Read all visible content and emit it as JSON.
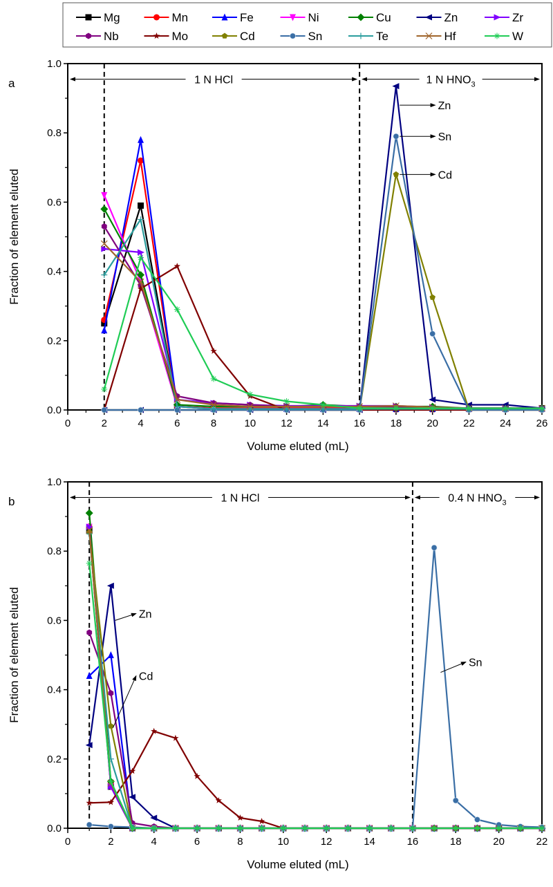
{
  "legend": {
    "entries": [
      {
        "name": "Mg",
        "color": "#000000",
        "marker": "square"
      },
      {
        "name": "Mn",
        "color": "#ff0000",
        "marker": "circle"
      },
      {
        "name": "Fe",
        "color": "#0000ff",
        "marker": "triangle-up"
      },
      {
        "name": "Ni",
        "color": "#ff00ff",
        "marker": "triangle-down"
      },
      {
        "name": "Cu",
        "color": "#008000",
        "marker": "diamond"
      },
      {
        "name": "Zn",
        "color": "#000080",
        "marker": "triangle-left"
      },
      {
        "name": "Zr",
        "color": "#8000ff",
        "marker": "triangle-right"
      },
      {
        "name": "Nb",
        "color": "#800080",
        "marker": "hexagon"
      },
      {
        "name": "Mo",
        "color": "#800000",
        "marker": "star"
      },
      {
        "name": "Cd",
        "color": "#808000",
        "marker": "pentagon"
      },
      {
        "name": "Sn",
        "color": "#3a6ea5",
        "marker": "sphere"
      },
      {
        "name": "Te",
        "color": "#2a9d9d",
        "marker": "plus"
      },
      {
        "name": "Hf",
        "color": "#a0642a",
        "marker": "cross"
      },
      {
        "name": "W",
        "color": "#1fcc55",
        "marker": "asterisk"
      }
    ]
  },
  "chart_data": [
    {
      "type": "line",
      "panel": "a",
      "xlabel": "Volume eluted (mL)",
      "ylabel": "Fraction of element eluted",
      "xlim": [
        0,
        26
      ],
      "ylim": [
        0,
        1.0
      ],
      "xticks": [
        0,
        2,
        4,
        6,
        8,
        10,
        12,
        14,
        16,
        18,
        20,
        22,
        24,
        26
      ],
      "yticks": [
        0.0,
        0.2,
        0.4,
        0.6,
        0.8,
        1.0
      ],
      "ytick_labels": [
        "0.0",
        "0.2",
        "0.4",
        "0.6",
        "0.8",
        "1.0"
      ],
      "dividers": [
        2,
        16
      ],
      "regions": [
        {
          "label": "1 N HCl",
          "sub": "",
          "from": 0,
          "to": 16
        },
        {
          "label": "1 N HNO",
          "sub": "3",
          "from": 16,
          "to": 26
        }
      ],
      "annotations": [
        {
          "text": "Zn",
          "x": 18.2,
          "y": 0.88,
          "tx": 20.3
        },
        {
          "text": "Sn",
          "x": 18.2,
          "y": 0.79,
          "tx": 20.3
        },
        {
          "text": "Cd",
          "x": 18.2,
          "y": 0.68,
          "tx": 20.3
        }
      ],
      "x": [
        2,
        4,
        6,
        8,
        10,
        12,
        14,
        16,
        18,
        20,
        22,
        24,
        26
      ],
      "series": [
        {
          "name": "Mg",
          "values": [
            0.25,
            0.59,
            0.01,
            0.005,
            0.005,
            0.005,
            0.005,
            0.005,
            0.005,
            0.005,
            0.005,
            0.005,
            0.005
          ]
        },
        {
          "name": "Mn",
          "values": [
            0.26,
            0.72,
            0.01,
            0.005,
            0.005,
            0.005,
            0.005,
            0.005,
            0.005,
            0.005,
            0.005,
            0.005,
            0.005
          ]
        },
        {
          "name": "Fe",
          "values": [
            0.23,
            0.78,
            0.01,
            0.003,
            0.003,
            0.003,
            0.003,
            0.003,
            0.003,
            0.003,
            0.003,
            0.003,
            0.003
          ]
        },
        {
          "name": "Ni",
          "values": [
            0.62,
            0.37,
            0.01,
            0.003,
            0.003,
            0.003,
            0.003,
            0.003,
            0.003,
            0.003,
            0.003,
            0.003,
            0.003
          ]
        },
        {
          "name": "Cu",
          "values": [
            0.58,
            0.39,
            0.015,
            0.01,
            0.01,
            0.01,
            0.015,
            0.01,
            0.01,
            0.01,
            0.005,
            0.005,
            0.005
          ]
        },
        {
          "name": "Zn",
          "values": [
            0.0,
            0.0,
            0.0,
            0.0,
            0.0,
            0.0,
            0.0,
            0.0,
            0.935,
            0.03,
            0.015,
            0.015,
            0.005
          ]
        },
        {
          "name": "Zr",
          "values": [
            0.465,
            0.455,
            0.03,
            0.02,
            0.015,
            0.012,
            0.012,
            0.012,
            0.012,
            0.008,
            0.005,
            0.005,
            0.005
          ]
        },
        {
          "name": "Nb",
          "values": [
            0.53,
            0.36,
            0.04,
            0.02,
            0.015,
            0.01,
            0.01,
            0.01,
            0.01,
            0.005,
            0.005,
            0.005,
            0.005
          ]
        },
        {
          "name": "Mo",
          "values": [
            0.0,
            0.35,
            0.415,
            0.17,
            0.04,
            0.0,
            0.0,
            0.0,
            0.0,
            0.0,
            0.0,
            0.0,
            0.0
          ]
        },
        {
          "name": "Cd",
          "values": [
            0.0,
            0.0,
            0.0,
            0.0,
            0.0,
            0.0,
            0.0,
            0.0,
            0.68,
            0.325,
            0.0,
            0.0,
            0.0
          ]
        },
        {
          "name": "Sn",
          "values": [
            0.0,
            0.0,
            0.0,
            0.0,
            0.0,
            0.0,
            0.0,
            0.0,
            0.79,
            0.22,
            0.0,
            0.0,
            0.0
          ]
        },
        {
          "name": "Te",
          "values": [
            0.39,
            0.55,
            0.01,
            0.003,
            0.003,
            0.003,
            0.003,
            0.003,
            0.003,
            0.003,
            0.003,
            0.003,
            0.003
          ]
        },
        {
          "name": "Hf",
          "values": [
            0.48,
            0.37,
            0.03,
            0.015,
            0.01,
            0.01,
            0.01,
            0.01,
            0.012,
            0.008,
            0.005,
            0.005,
            0.005
          ]
        },
        {
          "name": "W",
          "values": [
            0.06,
            0.44,
            0.29,
            0.09,
            0.045,
            0.025,
            0.015,
            0.005,
            0.005,
            0.005,
            0.005,
            0.005,
            0.005
          ]
        }
      ]
    },
    {
      "type": "line",
      "panel": "b",
      "xlabel": "Volume eluted (mL)",
      "ylabel": "Fraction of element eluted",
      "xlim": [
        0,
        22
      ],
      "ylim": [
        0,
        1.0
      ],
      "xticks": [
        0,
        2,
        4,
        6,
        8,
        10,
        12,
        14,
        16,
        18,
        20,
        22
      ],
      "yticks": [
        0.0,
        0.2,
        0.4,
        0.6,
        0.8,
        1.0
      ],
      "ytick_labels": [
        "0.0",
        "0.2",
        "0.4",
        "0.6",
        "0.8",
        "1.0"
      ],
      "dividers": [
        1,
        16
      ],
      "regions": [
        {
          "label": "1 N HCl",
          "sub": "",
          "from": 0,
          "to": 16
        },
        {
          "label": "0.4 N HNO",
          "sub": "3",
          "from": 16,
          "to": 22
        }
      ],
      "annotations": [
        {
          "text": "Zn",
          "x": 2.2,
          "y": 0.6,
          "tx": 3.3,
          "ty": 0.62
        },
        {
          "text": "Cd",
          "x": 2.1,
          "y": 0.29,
          "tx": 3.3,
          "ty": 0.44
        },
        {
          "text": "Sn",
          "x": 17.3,
          "y": 0.45,
          "tx": 18.6,
          "ty": 0.48
        }
      ],
      "x": [
        1,
        2,
        3,
        4,
        5,
        6,
        7,
        8,
        9,
        10,
        11,
        12,
        13,
        14,
        15,
        16,
        17,
        18,
        19,
        20,
        21,
        22
      ],
      "series": [
        {
          "name": "Mg",
          "values": [
            0.86,
            0.12,
            0.0,
            0,
            0,
            0,
            0,
            0,
            0,
            0,
            0,
            0,
            0,
            0,
            0,
            0,
            0,
            0,
            0,
            0,
            0,
            0
          ]
        },
        {
          "name": "Mn",
          "values": [
            0.87,
            0.13,
            0.0,
            0,
            0,
            0,
            0,
            0,
            0,
            0,
            0,
            0,
            0,
            0,
            0,
            0,
            0,
            0,
            0,
            0,
            0,
            0
          ]
        },
        {
          "name": "Fe",
          "values": [
            0.44,
            0.5,
            0.0,
            0,
            0,
            0,
            0,
            0,
            0,
            0,
            0,
            0,
            0,
            0,
            0,
            0,
            0,
            0,
            0,
            0,
            0,
            0
          ]
        },
        {
          "name": "Ni",
          "values": [
            0.87,
            0.12,
            0.0,
            0,
            0,
            0,
            0,
            0,
            0,
            0,
            0,
            0,
            0,
            0,
            0,
            0,
            0,
            0,
            0,
            0,
            0,
            0
          ]
        },
        {
          "name": "Cu",
          "values": [
            0.91,
            0.135,
            0.0,
            0,
            0,
            0,
            0,
            0,
            0,
            0,
            0,
            0,
            0,
            0,
            0,
            0,
            0,
            0,
            0,
            0,
            0,
            0
          ]
        },
        {
          "name": "Zn",
          "values": [
            0.24,
            0.7,
            0.09,
            0.03,
            0.0,
            0,
            0,
            0,
            0,
            0,
            0,
            0,
            0,
            0,
            0,
            0,
            0,
            0,
            0,
            0,
            0,
            0
          ]
        },
        {
          "name": "Zr",
          "values": [
            0.87,
            0.12,
            0.0,
            0,
            0,
            0,
            0,
            0,
            0,
            0,
            0,
            0,
            0,
            0,
            0,
            0,
            0,
            0,
            0,
            0,
            0,
            0
          ]
        },
        {
          "name": "Nb",
          "values": [
            0.565,
            0.39,
            0.015,
            0.005,
            0,
            0,
            0,
            0,
            0,
            0,
            0,
            0,
            0,
            0,
            0,
            0,
            0,
            0,
            0,
            0,
            0,
            0
          ]
        },
        {
          "name": "Mo",
          "values": [
            0.073,
            0.075,
            0.165,
            0.28,
            0.26,
            0.15,
            0.08,
            0.03,
            0.02,
            0.0,
            0,
            0,
            0,
            0,
            0,
            0,
            0,
            0,
            0,
            0,
            0,
            0
          ]
        },
        {
          "name": "Cd",
          "values": [
            0.855,
            0.295,
            0.0,
            0,
            0,
            0,
            0,
            0,
            0,
            0,
            0,
            0,
            0,
            0,
            0,
            0,
            0,
            0,
            0,
            0,
            0,
            0
          ]
        },
        {
          "name": "Sn",
          "values": [
            0.01,
            0.005,
            0.003,
            0,
            0,
            0,
            0,
            0,
            0,
            0,
            0,
            0,
            0,
            0,
            0,
            0,
            0.81,
            0.08,
            0.025,
            0.01,
            0.005,
            0.003
          ]
        },
        {
          "name": "Te",
          "values": [
            0.85,
            0.2,
            0.0,
            0,
            0,
            0,
            0,
            0,
            0,
            0,
            0,
            0,
            0,
            0,
            0,
            0,
            0,
            0,
            0,
            0,
            0,
            0
          ]
        },
        {
          "name": "Hf",
          "values": [
            0.86,
            0.13,
            0.0,
            0,
            0,
            0,
            0,
            0,
            0,
            0,
            0,
            0,
            0,
            0,
            0,
            0,
            0,
            0,
            0,
            0,
            0,
            0
          ]
        },
        {
          "name": "W",
          "values": [
            0.765,
            0.135,
            0.0,
            0,
            0,
            0,
            0,
            0,
            0,
            0,
            0,
            0,
            0,
            0,
            0,
            0,
            0,
            0,
            0,
            0,
            0,
            0
          ]
        }
      ]
    }
  ]
}
